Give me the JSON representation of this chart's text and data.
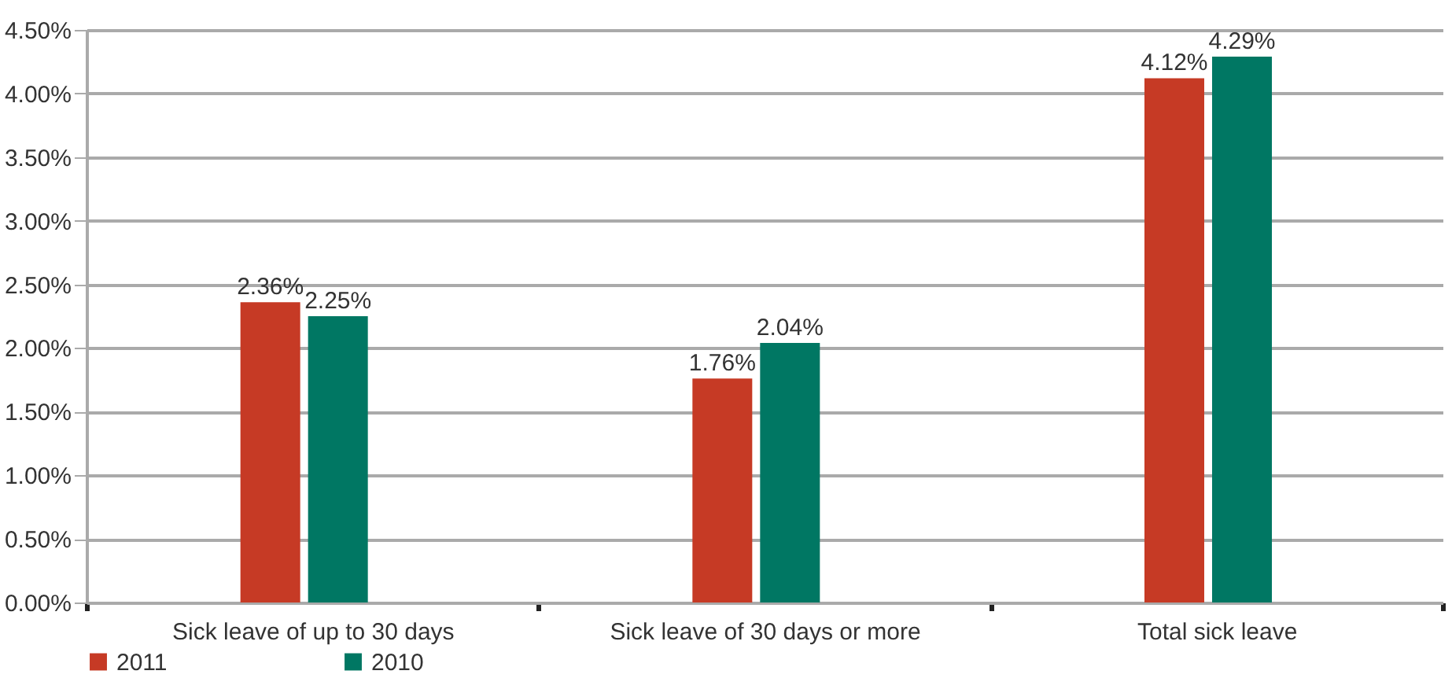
{
  "chart_data": {
    "type": "bar",
    "categories": [
      "Sick leave of up to 30 days",
      "Sick leave of 30 days or more",
      "Total sick leave"
    ],
    "series": [
      {
        "name": "2011",
        "color": "#c63a25",
        "values": [
          2.36,
          1.76,
          4.12
        ],
        "value_labels": [
          "2.36%",
          "1.76%",
          "4.12%"
        ]
      },
      {
        "name": "2010",
        "color": "#007763",
        "values": [
          2.25,
          2.04,
          4.29
        ],
        "value_labels": [
          "2.25%",
          "2.04%",
          "4.29%"
        ]
      }
    ],
    "ylim": [
      0,
      4.5
    ],
    "yticks": [
      {
        "value": 0,
        "label": "0.00%"
      },
      {
        "value": 0.5,
        "label": "0.50%"
      },
      {
        "value": 1,
        "label": "1.00%"
      },
      {
        "value": 1.5,
        "label": "1.50%"
      },
      {
        "value": 2,
        "label": "2.00%"
      },
      {
        "value": 2.5,
        "label": "2.50%"
      },
      {
        "value": 3,
        "label": "3.00%"
      },
      {
        "value": 3.5,
        "label": "3.50%"
      },
      {
        "value": 4,
        "label": "4.00%"
      },
      {
        "value": 4.5,
        "label": "4.50%"
      }
    ],
    "grid": "y",
    "legend": "bottom left"
  }
}
